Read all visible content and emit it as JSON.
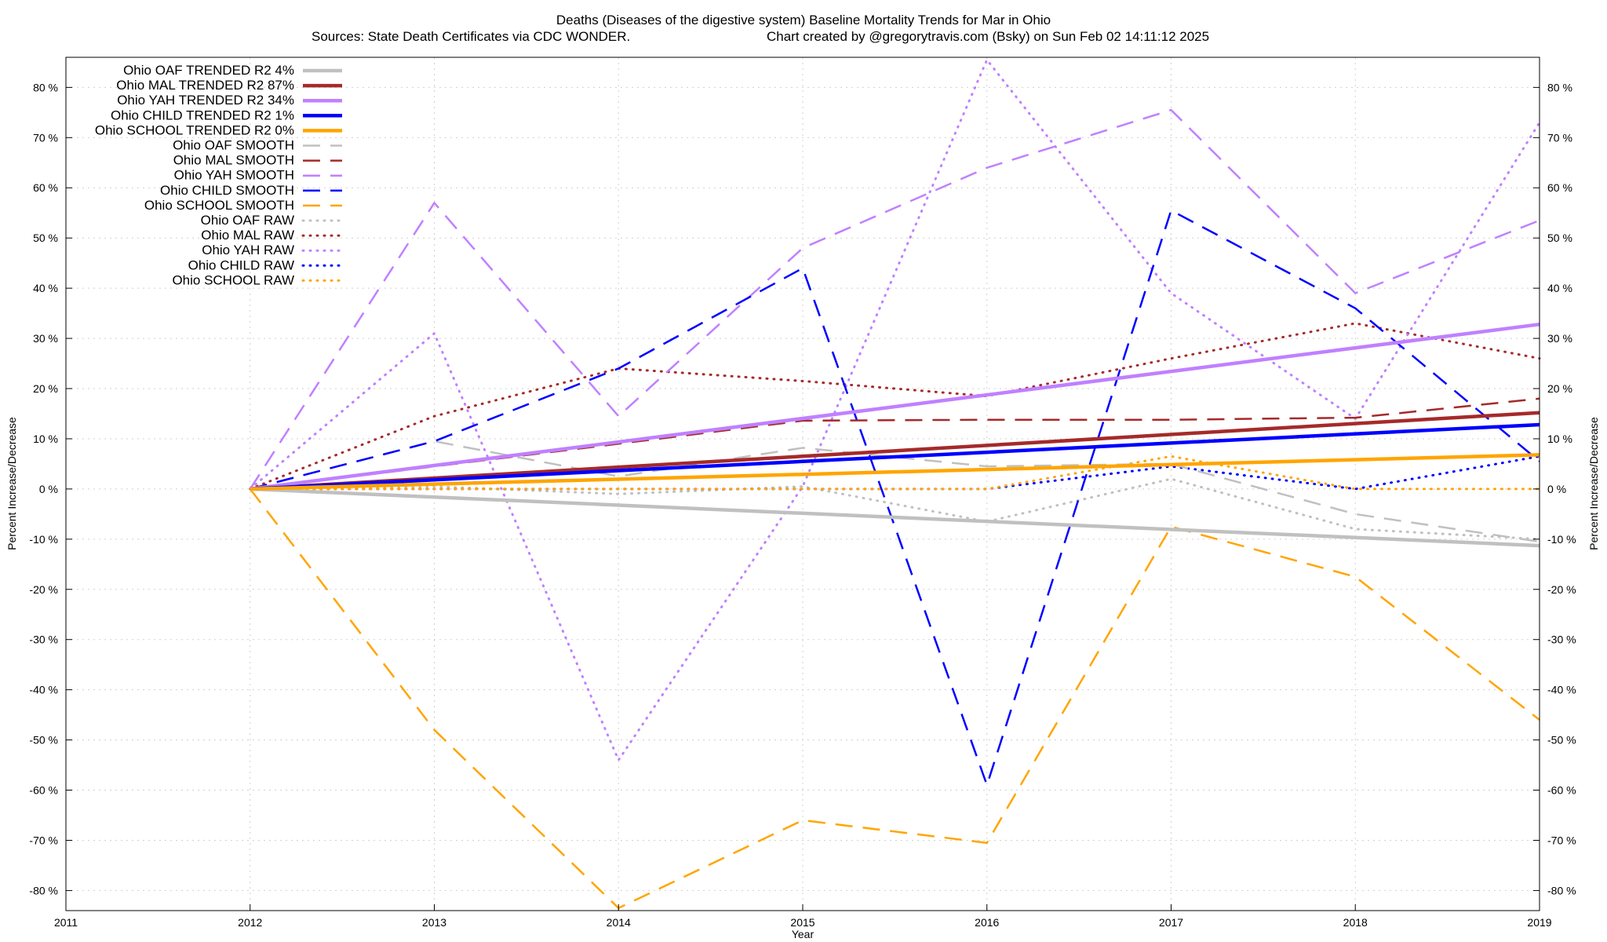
{
  "chart_data": {
    "type": "line",
    "title": "Deaths (Diseases of the digestive system)  Baseline Mortality Trends for Mar in Ohio",
    "subtitle_left": "Sources: State Death Certificates via CDC WONDER.",
    "subtitle_right": "Chart created by @gregorytravis.com (Bsky) on Sun Feb 02 14:11:12 2025",
    "xlabel": "Year",
    "ylabel": "Percent Increase/Decrease",
    "y2label": "Percent Increase/Decrease",
    "xlim": [
      2011,
      2019
    ],
    "ylim": [
      -84,
      86
    ],
    "x_ticks": [
      2011,
      2012,
      2013,
      2014,
      2015,
      2016,
      2017,
      2018,
      2019
    ],
    "y_ticks": [
      80,
      70,
      60,
      50,
      40,
      30,
      20,
      10,
      0,
      -10,
      -20,
      -30,
      -40,
      -50,
      -60,
      -70,
      -80
    ],
    "y_tick_suffix": " %",
    "grid": true,
    "legend_position": "top-left",
    "colors": {
      "OAF": "#c0c0c0",
      "MAL": "#a52a2a",
      "YAH": "#c080ff",
      "CHILD": "#0000ff",
      "SCHOOL": "#ffa500"
    },
    "series": [
      {
        "name": "Ohio OAF TRENDED R2",
        "r2": "4%",
        "group": "OAF",
        "style": "trended",
        "x": [
          2012,
          2019
        ],
        "y": [
          0,
          -11.3
        ]
      },
      {
        "name": "Ohio MAL TRENDED R2",
        "r2": "87%",
        "group": "MAL",
        "style": "trended",
        "x": [
          2012,
          2019
        ],
        "y": [
          0,
          15.2
        ]
      },
      {
        "name": "Ohio YAH TRENDED R2",
        "r2": "34%",
        "group": "YAH",
        "style": "trended",
        "x": [
          2012,
          2019
        ],
        "y": [
          0,
          32.8
        ]
      },
      {
        "name": "Ohio CHILD TRENDED R2",
        "r2": "1%",
        "group": "CHILD",
        "style": "trended",
        "x": [
          2012,
          2019
        ],
        "y": [
          0,
          12.8
        ]
      },
      {
        "name": "Ohio SCHOOL TRENDED R2",
        "r2": "0%",
        "group": "SCHOOL",
        "style": "trended",
        "x": [
          2012,
          2019
        ],
        "y": [
          0,
          6.8
        ]
      },
      {
        "name": "Ohio OAF SMOOTH",
        "group": "OAF",
        "style": "smooth",
        "x": [
          2012,
          2013,
          2014,
          2015,
          2016,
          2017,
          2018,
          2019
        ],
        "y": [
          0,
          9.5,
          2.5,
          8.2,
          4.5,
          5.0,
          -5.0,
          -10.5
        ]
      },
      {
        "name": "Ohio MAL SMOOTH",
        "group": "MAL",
        "style": "smooth",
        "x": [
          2012,
          2013,
          2014,
          2015,
          2016,
          2017,
          2018,
          2019
        ],
        "y": [
          0,
          4.5,
          9.0,
          13.6,
          13.8,
          13.8,
          14.2,
          18.0
        ]
      },
      {
        "name": "Ohio YAH SMOOTH",
        "group": "YAH",
        "style": "smooth",
        "x": [
          2012,
          2013,
          2014,
          2015,
          2016,
          2017,
          2018,
          2019
        ],
        "y": [
          0,
          57.0,
          14.5,
          48.0,
          64.0,
          75.5,
          39.0,
          53.5
        ]
      },
      {
        "name": "Ohio CHILD SMOOTH",
        "group": "CHILD",
        "style": "smooth",
        "x": [
          2012,
          2013,
          2014,
          2015,
          2016,
          2017,
          2018,
          2019
        ],
        "y": [
          0,
          9.5,
          24.0,
          44.0,
          -59.0,
          55.5,
          36.0,
          5.5
        ]
      },
      {
        "name": "Ohio SCHOOL SMOOTH",
        "group": "SCHOOL",
        "style": "smooth",
        "x": [
          2012,
          2013,
          2014,
          2015,
          2016,
          2017,
          2018,
          2019
        ],
        "y": [
          0,
          -48.0,
          -83.5,
          -66.0,
          -70.5,
          -7.5,
          -17.5,
          -46.0
        ]
      },
      {
        "name": "Ohio OAF RAW",
        "group": "OAF",
        "style": "raw",
        "x": [
          2012,
          2013,
          2014,
          2015,
          2016,
          2017,
          2018,
          2019
        ],
        "y": [
          0,
          0.5,
          -1.0,
          0.5,
          -6.5,
          2.0,
          -8.0,
          -10.0
        ]
      },
      {
        "name": "Ohio MAL RAW",
        "group": "MAL",
        "style": "raw",
        "x": [
          2012,
          2013,
          2014,
          2015,
          2016,
          2017,
          2018,
          2019
        ],
        "y": [
          0,
          14.5,
          24.0,
          21.5,
          18.5,
          26.0,
          33.0,
          26.0
        ]
      },
      {
        "name": "Ohio YAH RAW",
        "group": "YAH",
        "style": "raw",
        "x": [
          2012,
          2013,
          2014,
          2015,
          2016,
          2017,
          2018,
          2019
        ],
        "y": [
          0,
          31.0,
          -54.0,
          0.5,
          85.5,
          39.0,
          14.0,
          73.0
        ]
      },
      {
        "name": "Ohio CHILD RAW",
        "group": "CHILD",
        "style": "raw",
        "x": [
          2012,
          2013,
          2014,
          2015,
          2016,
          2017,
          2018,
          2019
        ],
        "y": [
          0,
          0,
          0,
          0,
          0,
          4.5,
          0,
          6.5
        ]
      },
      {
        "name": "Ohio SCHOOL RAW",
        "group": "SCHOOL",
        "style": "raw",
        "x": [
          2012,
          2013,
          2014,
          2015,
          2016,
          2017,
          2018,
          2019
        ],
        "y": [
          0,
          0,
          0,
          0,
          0,
          6.5,
          0,
          0
        ]
      }
    ]
  }
}
